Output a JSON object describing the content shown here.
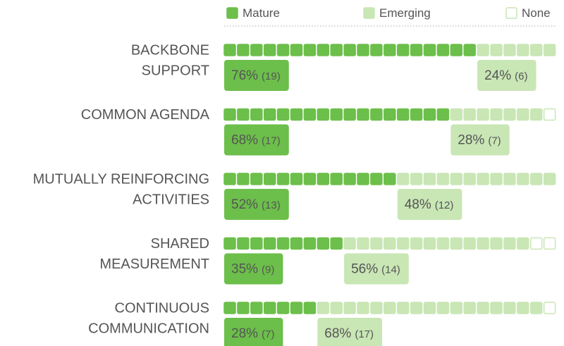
{
  "chart_data": {
    "type": "waffle",
    "categories": [
      [
        "BACKBONE",
        "SUPPORT"
      ],
      [
        "COMMON AGENDA"
      ],
      [
        "MUTUALLY REINFORCING",
        "ACTIVITIES"
      ],
      [
        "SHARED",
        "MEASUREMENT"
      ],
      [
        "CONTINUOUS",
        "COMMUNICATION"
      ]
    ],
    "series": [
      {
        "name": "Mature",
        "color": "#6cbf4a",
        "text_color": "#ffffff",
        "values": [
          76,
          68,
          52,
          35,
          28
        ],
        "value_labels": [
          "76%",
          "68%",
          "52%",
          "35%",
          "28%"
        ],
        "counts": [
          19,
          17,
          13,
          9,
          7
        ],
        "count_labels": [
          "(19)",
          "(17)",
          "(13)",
          "(9)",
          "(7)"
        ]
      },
      {
        "name": "Emerging",
        "color": "#c9e6b5",
        "text_color": "#555555",
        "values": [
          24,
          28,
          48,
          56,
          68
        ],
        "value_labels": [
          "24%",
          "28%",
          "48%",
          "56%",
          "68%"
        ],
        "counts": [
          6,
          7,
          12,
          14,
          17
        ],
        "count_labels": [
          "(6)",
          "(7)",
          "(12)",
          "(14)",
          "(17)"
        ]
      },
      {
        "name": "None",
        "color": "#ffffff",
        "stroke": "#c9e6b5",
        "counts": [
          0,
          1,
          0,
          2,
          1
        ]
      }
    ]
  }
}
